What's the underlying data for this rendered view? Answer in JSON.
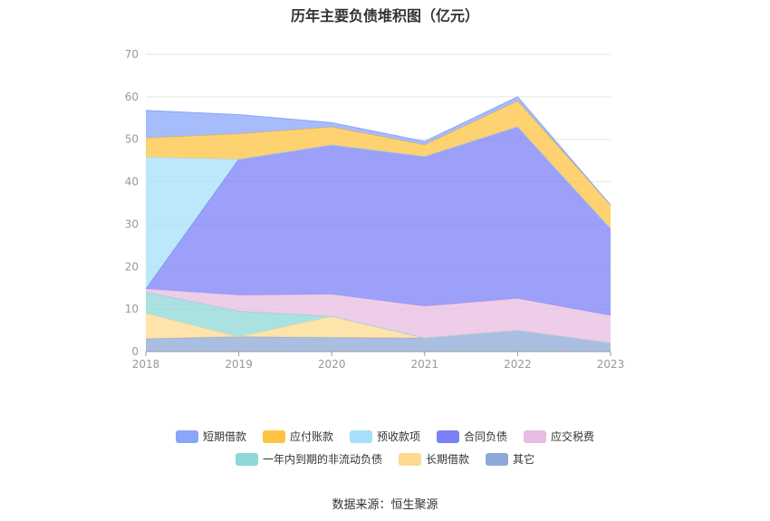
{
  "chart_data": {
    "type": "area",
    "stacked": true,
    "title": "历年主要负债堆积图（亿元）",
    "x": [
      "2018",
      "2019",
      "2020",
      "2021",
      "2022",
      "2023"
    ],
    "ylim": [
      0,
      70
    ],
    "yticks": [
      "0",
      "10",
      "20",
      "30",
      "40",
      "50",
      "60",
      "70"
    ],
    "grid": true,
    "legend_position": "bottom",
    "series": [
      {
        "name": "其它",
        "color": "#8ea8d8",
        "values": [
          3.0,
          3.5,
          3.3,
          3.2,
          5.0,
          2.0
        ]
      },
      {
        "name": "长期借款",
        "color": "#fdd98f",
        "values": [
          6.0,
          0.0,
          5.0,
          0.0,
          0.0,
          0.0
        ]
      },
      {
        "name": "一年内到期的非流动负债",
        "color": "#8ed8d8",
        "values": [
          5.0,
          6.0,
          0.0,
          0.0,
          0.0,
          0.0
        ]
      },
      {
        "name": "应交税费",
        "color": "#e8bce0",
        "values": [
          0.8,
          3.8,
          5.2,
          7.5,
          7.5,
          6.5
        ]
      },
      {
        "name": "合同负债",
        "color": "#7b80f5",
        "values": [
          0.0,
          32.0,
          35.2,
          35.3,
          40.5,
          20.5
        ]
      },
      {
        "name": "预收款项",
        "color": "#a5e0fa",
        "values": [
          31.0,
          0.0,
          0.0,
          0.0,
          0.0,
          0.0
        ]
      },
      {
        "name": "应付账款",
        "color": "#fdc341",
        "values": [
          4.5,
          6.0,
          4.2,
          2.7,
          6.0,
          5.5
        ]
      },
      {
        "name": "短期借款",
        "color": "#8aa6f8",
        "values": [
          6.5,
          4.5,
          1.0,
          0.8,
          1.0,
          0.0
        ]
      }
    ],
    "legend_rows": [
      [
        "短期借款",
        "应付账款",
        "预收款项",
        "合同负债",
        "应交税费"
      ],
      [
        "一年内到期的非流动负债",
        "长期借款",
        "其它"
      ]
    ]
  },
  "source_text": "数据来源：恒生聚源"
}
